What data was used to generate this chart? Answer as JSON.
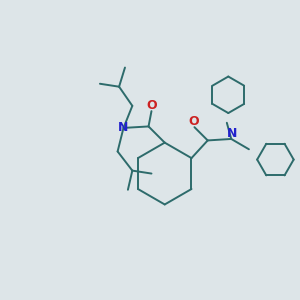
{
  "background_color": "#dde5e8",
  "bond_color": "#2d6b6b",
  "N_color": "#2222cc",
  "O_color": "#cc2222",
  "line_width": 1.4,
  "figsize": [
    3.0,
    3.0
  ],
  "dpi": 100,
  "xlim": [
    0,
    10
  ],
  "ylim": [
    0,
    10
  ]
}
